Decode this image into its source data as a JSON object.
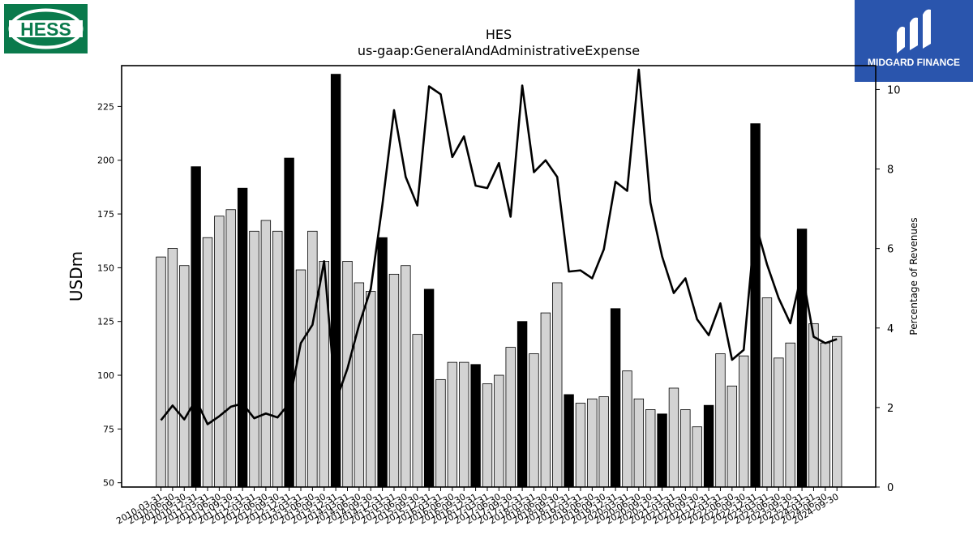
{
  "logos": {
    "left": {
      "text": "HESS",
      "color": "#0a7a4c"
    },
    "right": {
      "text": "MIDGARD FINANCE",
      "color": "#2a55ad"
    }
  },
  "chart_data": {
    "type": "bar",
    "title": "HES",
    "subtitle": "us-gaap:GeneralAndAdministrativeExpense",
    "ylabel": "USDm",
    "y2label": "Percentage of Revenues",
    "ylim": [
      48,
      244
    ],
    "y2lim": [
      0,
      10.6
    ],
    "yticks": [
      50,
      75,
      100,
      125,
      150,
      175,
      200,
      225
    ],
    "y2ticks": [
      0,
      2,
      4,
      6,
      8,
      10
    ],
    "categories": [
      "2010-03-31",
      "2010-06-30",
      "2010-09-30",
      "2010-12-31",
      "2011-03-31",
      "2011-06-30",
      "2011-09-30",
      "2011-12-31",
      "2012-03-31",
      "2012-06-30",
      "2012-09-30",
      "2012-12-31",
      "2013-03-31",
      "2013-06-30",
      "2013-09-30",
      "2013-12-31",
      "2014-03-31",
      "2014-06-30",
      "2014-09-30",
      "2014-12-31",
      "2015-03-31",
      "2015-06-30",
      "2015-09-30",
      "2015-12-31",
      "2016-03-31",
      "2016-06-30",
      "2016-09-30",
      "2016-12-31",
      "2017-03-31",
      "2017-06-30",
      "2017-09-30",
      "2017-12-31",
      "2018-03-31",
      "2018-06-30",
      "2018-09-30",
      "2018-12-31",
      "2019-03-31",
      "2019-06-30",
      "2019-09-30",
      "2019-12-31",
      "2020-03-31",
      "2020-06-30",
      "2020-09-30",
      "2020-12-31",
      "2021-03-31",
      "2021-06-30",
      "2021-09-30",
      "2021-12-31",
      "2022-03-31",
      "2022-06-30",
      "2022-09-30",
      "2022-12-31",
      "2023-03-31",
      "2023-06-30",
      "2023-09-30",
      "2023-12-31",
      "2024-03-31",
      "2024-06-30",
      "2024-09-30"
    ],
    "series": [
      {
        "values": [
          155,
          159,
          151,
          197,
          164,
          174,
          177,
          187,
          167,
          172,
          167,
          201,
          149,
          167,
          153,
          240,
          153,
          143,
          139,
          164,
          147,
          151,
          119,
          140,
          98,
          106,
          106,
          105,
          96,
          100,
          113,
          125,
          110,
          129,
          143,
          91,
          87,
          89,
          90,
          131,
          102,
          89,
          84,
          82,
          94,
          84,
          76,
          86,
          110,
          95,
          109,
          217,
          136,
          108,
          115,
          168,
          124,
          115,
          118
        ]
      },
      {
        "values": [
          1.68,
          2.05,
          1.7,
          2.2,
          1.58,
          1.78,
          2.02,
          2.1,
          1.73,
          1.85,
          1.75,
          2.1,
          3.62,
          4.08,
          5.68,
          2.15,
          2.98,
          4.08,
          4.98,
          7.1,
          9.48,
          7.8,
          7.08,
          10.08,
          9.88,
          8.3,
          8.82,
          7.58,
          7.52,
          8.15,
          6.8,
          10.1,
          7.92,
          8.22,
          7.8,
          5.42,
          5.45,
          5.25,
          5.98,
          7.68,
          7.45,
          10.5,
          7.15,
          5.8,
          4.88,
          5.25,
          4.22,
          3.82,
          4.62,
          3.2,
          3.45,
          6.65,
          5.6,
          4.75,
          4.12,
          5.42,
          3.78,
          3.62,
          3.72
        ]
      }
    ],
    "bar_colors": {
      "quarter": "#d3d3d3",
      "year_end": "#000000"
    },
    "line_color": "#000000",
    "grid": false,
    "legend": "none"
  }
}
